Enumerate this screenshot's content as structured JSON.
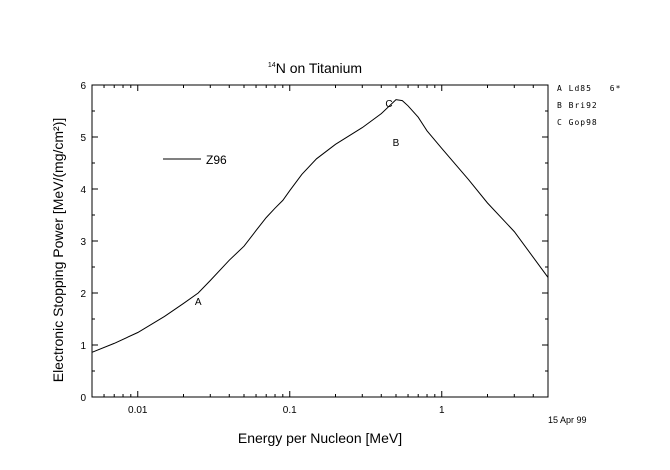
{
  "chart_data": {
    "type": "line",
    "title": {
      "sup": "14",
      "text": "N on Titanium"
    },
    "xlabel": "Energy per Nucleon [MeV]",
    "ylabel": "Electronic Stopping Power [MeV/(mg/cm²)]",
    "x_scale": "log",
    "xlim": [
      0.005,
      5
    ],
    "ylim": [
      0,
      6
    ],
    "x_ticks": [
      {
        "value": 0.01,
        "label": "0.01"
      },
      {
        "value": 0.1,
        "label": "0.1"
      },
      {
        "value": 1,
        "label": "1"
      }
    ],
    "y_ticks": [
      0,
      1,
      2,
      3,
      4,
      5,
      6
    ],
    "series": [
      {
        "name": "Z96",
        "color": "#000000",
        "x": [
          0.005,
          0.007,
          0.01,
          0.015,
          0.02,
          0.025,
          0.03,
          0.04,
          0.05,
          0.06,
          0.07,
          0.08,
          0.09,
          0.1,
          0.12,
          0.15,
          0.2,
          0.3,
          0.4,
          0.5,
          0.55,
          0.6,
          0.7,
          0.8,
          1.0,
          1.5,
          2.0,
          3.0,
          5.0
        ],
        "y": [
          0.86,
          1.03,
          1.24,
          1.55,
          1.8,
          2.0,
          2.24,
          2.63,
          2.9,
          3.2,
          3.45,
          3.63,
          3.78,
          3.97,
          4.28,
          4.58,
          4.86,
          5.18,
          5.45,
          5.72,
          5.7,
          5.6,
          5.38,
          5.12,
          4.78,
          4.18,
          3.73,
          3.18,
          2.3
        ]
      }
    ],
    "points": [
      {
        "label": "A",
        "x": 0.025,
        "y": 1.85
      },
      {
        "label": "B",
        "x": 0.5,
        "y": 4.9
      },
      {
        "label": "C",
        "x": 0.45,
        "y": 5.65
      }
    ],
    "legend_position": "upper-left",
    "side_legend": [
      {
        "marker": "A",
        "text": "Ld85",
        "extra": "6*"
      },
      {
        "marker": "B",
        "text": "Bri92",
        "extra": ""
      },
      {
        "marker": "C",
        "text": "Gop98",
        "extra": ""
      }
    ],
    "date_stamp": "15 Apr 99",
    "grid": false
  }
}
